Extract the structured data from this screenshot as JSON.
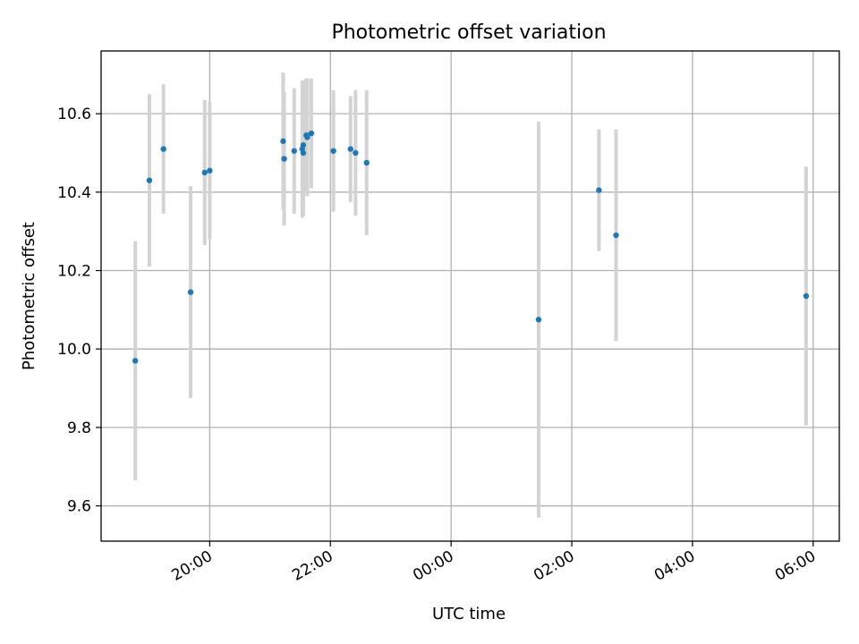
{
  "chart_data": {
    "type": "scatter",
    "title": "Photometric offset variation",
    "xlabel": "UTC time",
    "ylabel": "Photometric offset",
    "x_ticks": [
      "20:00",
      "22:00",
      "00:00",
      "02:00",
      "04:00",
      "06:00"
    ],
    "y_ticks": [
      "9.6",
      "9.8",
      "10.0",
      "10.2",
      "10.4",
      "10.6"
    ],
    "xlim": [
      "18:12",
      "06:26"
    ],
    "ylim": [
      9.51,
      10.76
    ],
    "grid": true,
    "colors": {
      "points": "#1f77b4",
      "errorbars": "#d3d3d3",
      "grid": "#b0b0b0"
    },
    "series": [
      {
        "points": [
          {
            "t": "18:46",
            "y": 9.97,
            "yerr": 0.305
          },
          {
            "t": "19:00",
            "y": 10.43,
            "yerr": 0.22
          },
          {
            "t": "19:14",
            "y": 10.51,
            "yerr": 0.165
          },
          {
            "t": "19:41",
            "y": 10.145,
            "yerr": 0.27
          },
          {
            "t": "19:55",
            "y": 10.45,
            "yerr": 0.185
          },
          {
            "t": "20:00",
            "y": 10.455,
            "yerr": 0.175
          },
          {
            "t": "21:13",
            "y": 10.53,
            "yerr": 0.175
          },
          {
            "t": "21:14",
            "y": 10.485,
            "yerr": 0.17
          },
          {
            "t": "21:24",
            "y": 10.505,
            "yerr": 0.16
          },
          {
            "t": "21:32",
            "y": 10.51,
            "yerr": 0.175
          },
          {
            "t": "21:33",
            "y": 10.52,
            "yerr": 0.165
          },
          {
            "t": "21:33",
            "y": 10.5,
            "yerr": 0.16
          },
          {
            "t": "21:36",
            "y": 10.545,
            "yerr": 0.145
          },
          {
            "t": "21:37",
            "y": 10.54,
            "yerr": 0.15
          },
          {
            "t": "21:41",
            "y": 10.55,
            "yerr": 0.14
          },
          {
            "t": "22:03",
            "y": 10.505,
            "yerr": 0.155
          },
          {
            "t": "22:20",
            "y": 10.51,
            "yerr": 0.135
          },
          {
            "t": "22:25",
            "y": 10.5,
            "yerr": 0.16
          },
          {
            "t": "22:36",
            "y": 10.475,
            "yerr": 0.185
          },
          {
            "t": "01:27",
            "y": 10.075,
            "yerr": 0.505
          },
          {
            "t": "02:27",
            "y": 10.405,
            "yerr": 0.155
          },
          {
            "t": "02:44",
            "y": 10.29,
            "yerr": 0.27
          },
          {
            "t": "05:53",
            "y": 10.135,
            "yerr": 0.33
          }
        ]
      }
    ]
  }
}
